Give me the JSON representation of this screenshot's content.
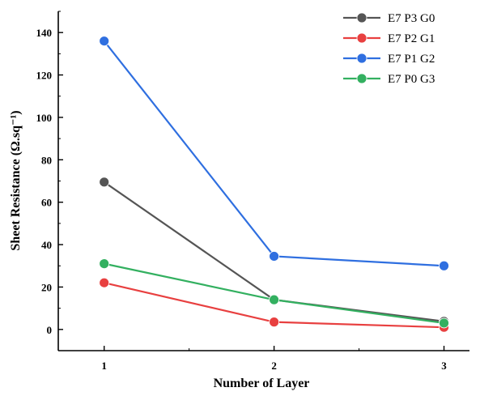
{
  "chart_data": {
    "type": "line",
    "title": "",
    "xlabel": "Number of Layer",
    "ylabel": "Sheet Resistance (Ω.sq⁻¹)",
    "x": [
      1,
      2,
      3
    ],
    "x_tick_labels": [
      "1",
      "2",
      "3"
    ],
    "xlim": [
      0.73,
      3.15
    ],
    "ylim": [
      -10,
      150
    ],
    "y_ticks": [
      0,
      20,
      40,
      60,
      80,
      100,
      120,
      140
    ],
    "y_tick_labels": [
      "0",
      "20",
      "40",
      "60",
      "80",
      "100",
      "120",
      "140"
    ],
    "legend_position": "top-right",
    "grid": false,
    "series": [
      {
        "name": "E7 P3 G0",
        "color": "#555555",
        "values": [
          69.5,
          14.0,
          3.8
        ]
      },
      {
        "name": "E7 P2 G1",
        "color": "#e84040",
        "values": [
          22.0,
          3.5,
          1.0
        ]
      },
      {
        "name": "E7 P1 G2",
        "color": "#2f6fe0",
        "values": [
          136.0,
          34.5,
          30.0
        ]
      },
      {
        "name": "E7 P0 G3",
        "color": "#33b060",
        "values": [
          31.0,
          14.0,
          3.0
        ]
      }
    ]
  }
}
